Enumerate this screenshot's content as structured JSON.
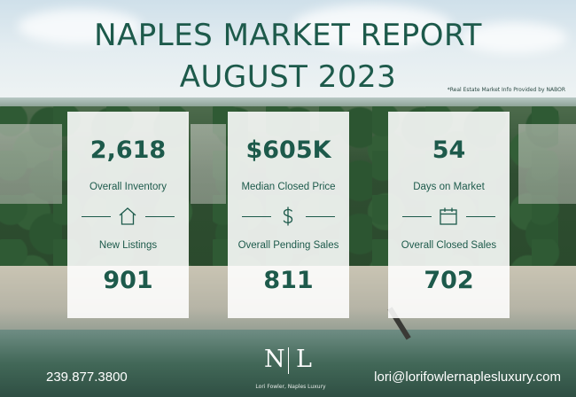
{
  "header": {
    "title_line1": "NAPLES MARKET REPORT",
    "title_line2": "AUGUST 2023",
    "source_note": "*Real Estate Market Info Provided by NABOR"
  },
  "cards": [
    {
      "top_value": "2,618",
      "top_label": "Overall Inventory",
      "icon": "house-icon",
      "bottom_label": "New Listings",
      "bottom_value": "901"
    },
    {
      "top_value": "$605K",
      "top_label": "Median Closed Price",
      "icon": "dollar-icon",
      "bottom_label": "Overall Pending Sales",
      "bottom_value": "811"
    },
    {
      "top_value": "54",
      "top_label": "Days on Market",
      "icon": "calendar-icon",
      "bottom_label": "Overall Closed Sales",
      "bottom_value": "702"
    }
  ],
  "footer": {
    "phone": "239.877.3800",
    "email": "lori@lorifowlernaplesluxury.com",
    "logo_letter_left": "N",
    "logo_letter_right": "L",
    "logo_caption": "Lori Fowler, Naples Luxury"
  },
  "colors": {
    "accent": "#1d5a4b",
    "card_background": "#ffffff",
    "footer_text": "#ffffff"
  }
}
